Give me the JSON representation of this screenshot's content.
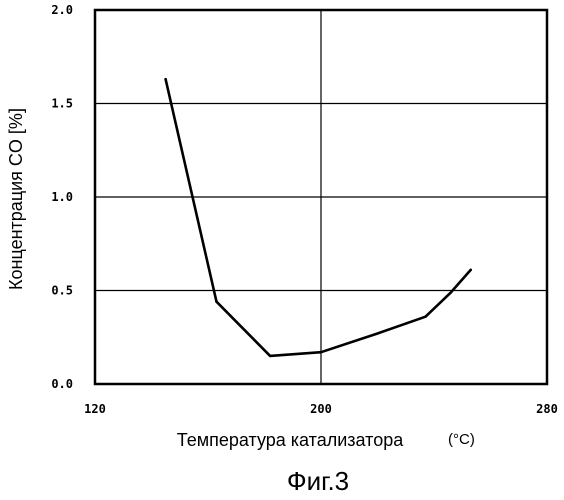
{
  "chart_data": {
    "type": "line",
    "xlabel": "Температура катализатора",
    "xunit": "(°C)",
    "ylabel": "Концентрация CO [%]",
    "xlim": [
      120,
      280
    ],
    "ylim": [
      0.0,
      2.0
    ],
    "xticks": [
      120,
      200,
      280
    ],
    "yticks": [
      0.0,
      0.5,
      1.0,
      1.5,
      2.0
    ],
    "xtick_labels": [
      "120",
      "200",
      "280"
    ],
    "ytick_labels": [
      "0.0",
      "0.5",
      "1.0",
      "1.5",
      "2.0"
    ],
    "grid": true,
    "series": [
      {
        "x": [
          145,
          163,
          182,
          200,
          220,
          237,
          246,
          253
        ],
        "y": [
          1.63,
          0.44,
          0.15,
          0.17,
          0.27,
          0.36,
          0.49,
          0.61
        ]
      }
    ]
  },
  "figure_caption": "Фиг.3"
}
